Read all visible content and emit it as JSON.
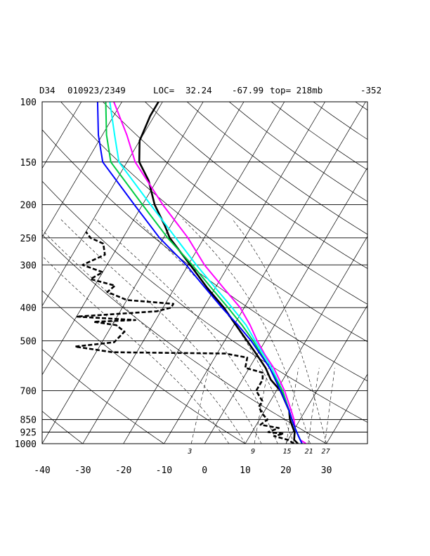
{
  "header": {
    "station": "D34",
    "datetime": "010923/2349",
    "loc_label": "LOC=",
    "lat": "32.24",
    "lon": "-67.99",
    "top_label": "top= 218mb",
    "extra": "-352"
  },
  "chart_data": {
    "type": "skew-t log-p",
    "title": "D34   010923/2349 LOC= 32.24   -67.99  top= 218mb   -352",
    "pressure_ticks": [
      100,
      150,
      200,
      250,
      300,
      400,
      500,
      700,
      850,
      925,
      1000
    ],
    "temperature_ticks": [
      -40,
      -30,
      -20,
      -10,
      0,
      10,
      20,
      30
    ],
    "mixing_ratio_labels": [
      "3",
      "9",
      "15",
      "21",
      "27"
    ],
    "ylim_hpa": [
      1000,
      100
    ],
    "xlim_c_at_1000hpa": [
      -40,
      40
    ],
    "y_scale": "log-pressure",
    "grid": true,
    "series": [
      {
        "color": "#000000",
        "style": "solid",
        "points_p_t": [
          [
            1000,
            23
          ],
          [
            975,
            21.5
          ],
          [
            950,
            21
          ],
          [
            925,
            20.5
          ],
          [
            900,
            19.5
          ],
          [
            850,
            17.5
          ],
          [
            800,
            16
          ],
          [
            700,
            11
          ],
          [
            650,
            7
          ],
          [
            600,
            4
          ],
          [
            550,
            0
          ],
          [
            500,
            -4.5
          ],
          [
            450,
            -9.5
          ],
          [
            400,
            -15
          ],
          [
            350,
            -22
          ],
          [
            300,
            -29.5
          ],
          [
            250,
            -38.5
          ],
          [
            230,
            -41.5
          ],
          [
            200,
            -47
          ],
          [
            170,
            -52
          ],
          [
            150,
            -57
          ],
          [
            130,
            -60
          ],
          [
            110,
            -61
          ],
          [
            100,
            -61
          ]
        ]
      },
      {
        "color": "#000000",
        "style": "dashed",
        "points_p_t": [
          [
            1000,
            22
          ],
          [
            975,
            20
          ],
          [
            950,
            16
          ],
          [
            935,
            18
          ],
          [
            925,
            14
          ],
          [
            900,
            16
          ],
          [
            880,
            11
          ],
          [
            850,
            12
          ],
          [
            820,
            10
          ],
          [
            780,
            8
          ],
          [
            750,
            8
          ],
          [
            700,
            5
          ],
          [
            650,
            5
          ],
          [
            620,
            4
          ],
          [
            600,
            -1
          ],
          [
            560,
            -2
          ],
          [
            545,
            -8
          ],
          [
            540,
            -36
          ],
          [
            520,
            -46
          ],
          [
            505,
            -37
          ],
          [
            470,
            -36
          ],
          [
            450,
            -39
          ],
          [
            440,
            -45
          ],
          [
            435,
            -35
          ],
          [
            425,
            -50
          ],
          [
            410,
            -31
          ],
          [
            400,
            -28
          ],
          [
            390,
            -28
          ],
          [
            380,
            -40
          ],
          [
            360,
            -46
          ],
          [
            345,
            -45
          ],
          [
            330,
            -52
          ],
          [
            315,
            -50
          ],
          [
            300,
            -56
          ],
          [
            280,
            -52
          ],
          [
            260,
            -54
          ],
          [
            250,
            -58
          ],
          [
            240,
            -60
          ]
        ]
      },
      {
        "color": "#ff00ff",
        "style": "solid",
        "points_p_t": [
          [
            1000,
            25
          ],
          [
            975,
            23
          ],
          [
            950,
            22
          ],
          [
            925,
            21
          ],
          [
            900,
            20
          ],
          [
            850,
            18.5
          ],
          [
            800,
            16.5
          ],
          [
            700,
            12
          ],
          [
            600,
            6
          ],
          [
            550,
            2
          ],
          [
            500,
            -2
          ],
          [
            450,
            -6
          ],
          [
            400,
            -11
          ],
          [
            350,
            -18
          ],
          [
            300,
            -26
          ],
          [
            250,
            -34
          ],
          [
            200,
            -45
          ],
          [
            150,
            -58
          ],
          [
            125,
            -64
          ],
          [
            100,
            -72
          ]
        ]
      },
      {
        "color": "#00ffff",
        "style": "solid",
        "points_p_t": [
          [
            1000,
            24
          ],
          [
            975,
            23
          ],
          [
            950,
            22
          ],
          [
            925,
            21
          ],
          [
            900,
            20
          ],
          [
            850,
            18
          ],
          [
            800,
            16
          ],
          [
            700,
            11.5
          ],
          [
            600,
            5.5
          ],
          [
            500,
            -2.5
          ],
          [
            450,
            -7
          ],
          [
            400,
            -13
          ],
          [
            350,
            -20
          ],
          [
            300,
            -28
          ],
          [
            250,
            -37
          ],
          [
            200,
            -48
          ],
          [
            150,
            -62
          ],
          [
            125,
            -67
          ],
          [
            100,
            -73
          ]
        ]
      },
      {
        "color": "#00cc44",
        "style": "solid",
        "points_p_t": [
          [
            1000,
            24
          ],
          [
            975,
            23
          ],
          [
            950,
            22
          ],
          [
            925,
            21
          ],
          [
            900,
            20
          ],
          [
            850,
            18
          ],
          [
            800,
            16
          ],
          [
            700,
            11.5
          ],
          [
            600,
            5
          ],
          [
            500,
            -3
          ],
          [
            450,
            -8
          ],
          [
            400,
            -14
          ],
          [
            350,
            -21
          ],
          [
            300,
            -29
          ],
          [
            250,
            -39
          ],
          [
            200,
            -50
          ],
          [
            150,
            -64
          ],
          [
            125,
            -69
          ],
          [
            100,
            -74
          ]
        ]
      },
      {
        "color": "#0000ff",
        "style": "solid",
        "points_p_t": [
          [
            1000,
            24
          ],
          [
            975,
            23
          ],
          [
            950,
            22
          ],
          [
            925,
            21
          ],
          [
            900,
            20
          ],
          [
            850,
            18
          ],
          [
            800,
            16
          ],
          [
            700,
            11
          ],
          [
            600,
            5
          ],
          [
            500,
            -3.5
          ],
          [
            450,
            -9
          ],
          [
            400,
            -15.5
          ],
          [
            350,
            -22.5
          ],
          [
            300,
            -30.5
          ],
          [
            250,
            -41
          ],
          [
            200,
            -52
          ],
          [
            150,
            -66
          ],
          [
            125,
            -71
          ],
          [
            100,
            -76
          ]
        ]
      }
    ]
  }
}
